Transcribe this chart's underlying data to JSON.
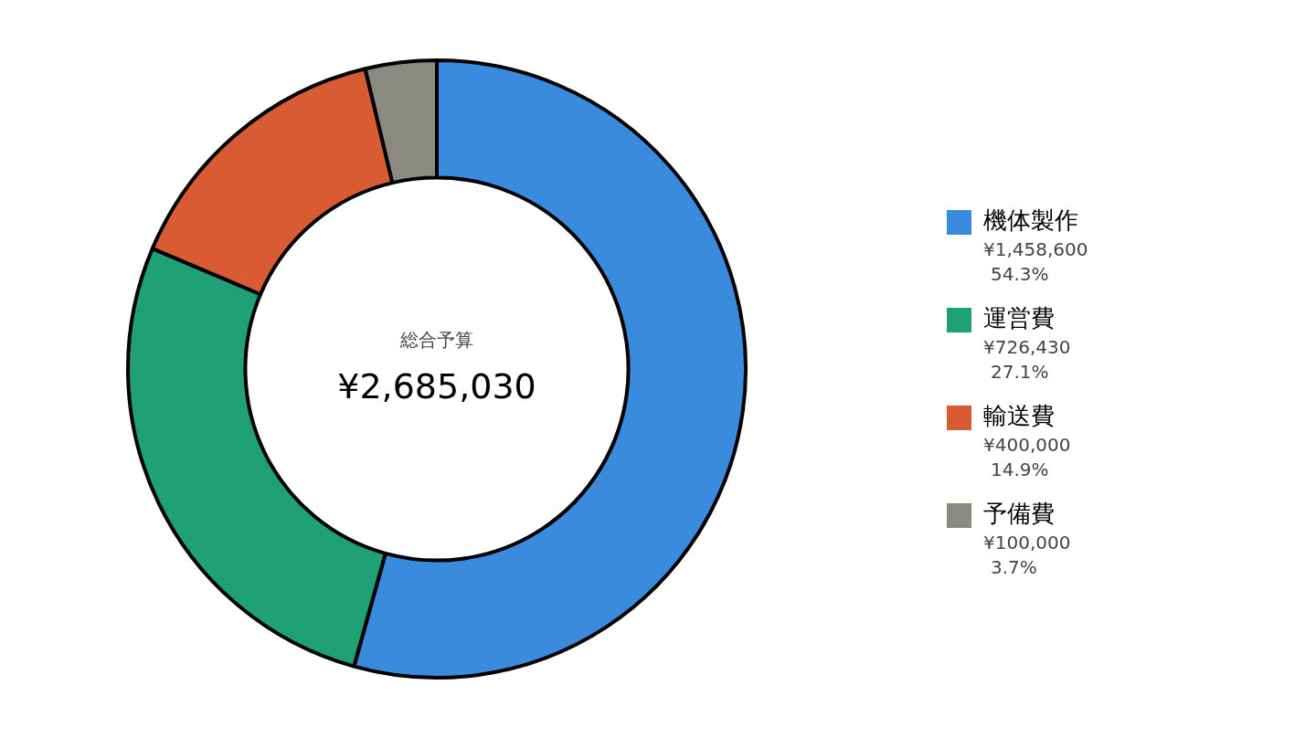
{
  "chart_data": {
    "type": "donut",
    "categories": [
      "機体製作",
      "運営費",
      "輸送費",
      "予備費"
    ],
    "values": [
      1458600,
      726430,
      400000,
      100000
    ],
    "colors": [
      "#3a8ade",
      "#1fa077",
      "#d85b33",
      "#8a8a82"
    ],
    "value_labels": [
      "¥1,458,600\n54.3%",
      "¥726,430\n27.1%",
      "¥400,000\n14.9%",
      "¥100,000\n3.7%"
    ],
    "annotations": [
      "総合予算",
      "¥2,685,030"
    ],
    "legend": "right"
  }
}
